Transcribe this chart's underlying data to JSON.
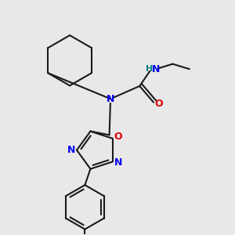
{
  "bg_color": "#e8e8e8",
  "bond_color": "#1a1a1a",
  "N_color": "#0000ee",
  "O_color": "#dd0000",
  "H_color": "#008080",
  "lw": 1.5,
  "figsize": [
    3.0,
    3.0
  ],
  "dpi": 100,
  "xlim": [
    0.0,
    1.0
  ],
  "ylim": [
    0.05,
    1.05
  ]
}
